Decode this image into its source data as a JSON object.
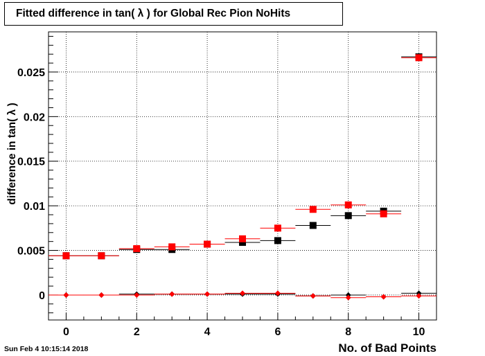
{
  "title": "Fitted difference in tan( λ ) for Global Rec Pion NoHits",
  "timestamp": "Sun Feb  4 10:15:14 2018",
  "colors": {
    "black_series": "#000000",
    "red_series": "#ff0000",
    "grid": "#000000"
  },
  "chart_data": {
    "type": "scatter",
    "title": "Fitted difference in tan( λ ) for Global Rec Pion NoHits",
    "xlabel": "No. of Bad Points",
    "ylabel": "difference in tan( λ )",
    "xlim": [
      -0.5,
      10.5
    ],
    "ylim": [
      -0.0028,
      0.0295
    ],
    "xticks": [
      0,
      2,
      4,
      6,
      8,
      10
    ],
    "yticks": [
      0,
      0.005,
      0.01,
      0.015,
      0.02,
      0.025
    ],
    "ytick_labels": [
      "0",
      "0.005",
      "0.01",
      "0.015",
      "0.02",
      "0.025"
    ],
    "grid": true,
    "x": [
      0,
      1,
      2,
      3,
      4,
      5,
      6,
      7,
      8,
      9,
      10
    ],
    "series": [
      {
        "marker": "square",
        "color": "#000000",
        "values": [
          0.0044,
          0.0044,
          0.0051,
          0.0051,
          0.0057,
          0.0059,
          0.0061,
          0.0078,
          0.0089,
          0.0094,
          0.0267
        ]
      },
      {
        "marker": "square",
        "color": "#ff0000",
        "values": [
          0.0044,
          0.0044,
          0.0052,
          0.0054,
          0.0057,
          0.0063,
          0.0075,
          0.0096,
          0.0101,
          0.0091,
          0.0266
        ]
      },
      {
        "marker": "diamond",
        "color": "#000000",
        "values": [
          0.0,
          0.0,
          0.0001,
          0.0001,
          0.0001,
          0.0001,
          0.0001,
          -0.0001,
          0.0,
          -0.0002,
          0.0002
        ]
      },
      {
        "marker": "diamond",
        "color": "#ff0000",
        "values": [
          0.0,
          0.0,
          0.0,
          0.0001,
          0.0001,
          0.0002,
          0.0002,
          -0.0001,
          -0.0003,
          -0.0002,
          -0.0001
        ]
      }
    ]
  }
}
